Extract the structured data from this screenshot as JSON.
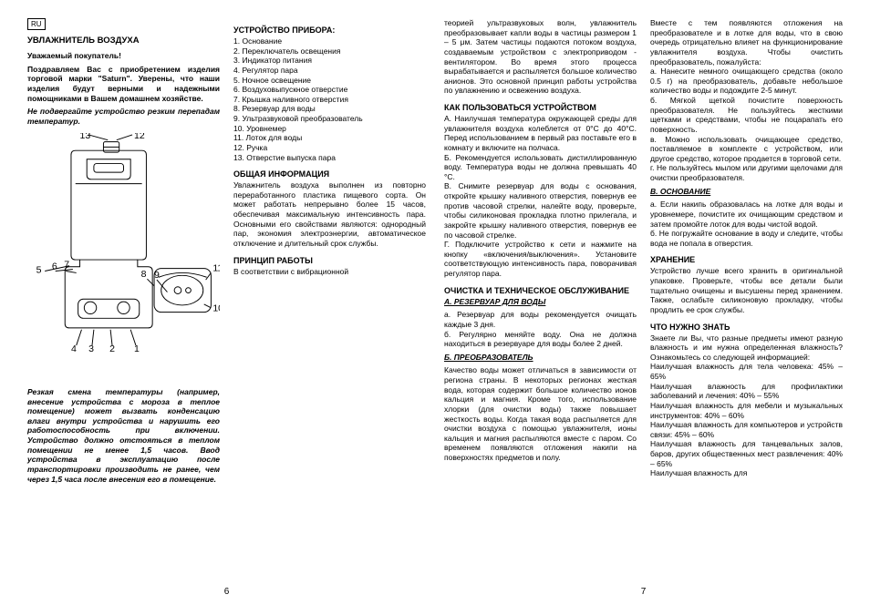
{
  "lang_label": "RU",
  "page_left_num": "6",
  "page_right_num": "7",
  "title": "УВЛАЖНИТЕЛЬ ВОЗДУХА",
  "greeting_heading": "Уважаемый покупатель!",
  "greeting_body": "Поздравляем Вас с приобретением изделия торговой марки \"Saturn\". Уверены, что наши изделия будут верными и надежными помощниками в Вашем домашнем хозяйстве.",
  "warning1": "Не подвергайте устройство резким перепадам температур.",
  "warning2": "Резкая смена температуры (например, внесение устройства с мороза в теплое помещение) может вызвать конденсацию влаги внутри устройства и нарушить его работоспособность при включении. Устройство должно отстояться в теплом помещении не менее 1,5 часов. Ввод устройства в эксплуатацию после транспортировки произво­дить не ранее, чем через 1,5 часа после внесения его в помещение.",
  "device_heading": "УСТРОЙСТВО ПРИБОРА:",
  "device_parts": [
    "Основание",
    "Переключатель освещения",
    "Индикатор питания",
    "Регулятор пара",
    "Ночное освещение",
    "Воздуховыпускное отверстие",
    "Крышка наливного отверстия",
    "Резервуар для воды",
    "Ультразвуковой преобразователь",
    "Уровнемер",
    "Лоток для воды",
    "Ручка",
    "Отверстие выпуска пара"
  ],
  "general_heading": "ОБЩАЯ ИНФОРМАЦИЯ",
  "general_body": "Увлажнитель воздуха выполнен из повторно переработанного пластика пищевого сорта. Он может работать непрерывно более 15 часов, обеспечивая максимальную интенсивность пара. Основными его свойствами являются: однородный пар, экономия электроэнергии, автоматическое отключение и длительный срок службы.",
  "principle_heading": "ПРИНЦИП РАБОТЫ",
  "principle_body1": "В соответствии с вибрационной",
  "principle_body2": "теорией ультразвуковых волн, увлажнитель преобразовывает капли воды в частицы размером 1 – 5 μм. Затем частицы подаются потоком воздуха, создаваемым устройством с электроприводом - вентилятором. Во время этого процесса вырабатывается и распыляется большое количество анионов. Это основной принцип работы устройства по увлажнению и освежению воздуха.",
  "usage_heading": "КАК ПОЛЬЗОВАТЬСЯ УСТРОЙСТВОМ",
  "usage_body": "А. Наилучшая температура окружающей среды для увлажнителя воздуха колеблется от 0°С до 40°С. Перед использованием в первый раз поставьте его в комнату и включите на полчаса.\nБ. Рекомендуется использовать дистиллированную воду. Температура воды не должна превышать 40 °С.\nВ. Снимите резервуар для воды с основания, откройте крышку наливного отверстия, повернув ее против часовой стрелки, налейте воду, проверьте, чтобы силиконовая прокладка плотно прилегала, и закройте крышку наливного отверстия, повернув ее по часовой стрелке.\nГ. Подключите устройство к сети и нажмите на кнопку «включения/выключения». Установите соответствующую интенсивность пара, поворачивая регулятор пара.",
  "maint_heading": "ОЧИСТКА И ТЕХНИЧЕСКОЕ ОБСЛУЖИВАНИЕ",
  "maint_a_heading": "А. РЕЗЕРВУАР ДЛЯ ВОДЫ",
  "maint_a_body": "а. Резервуар для воды рекомендуется очищать каждые 3 дня.\nб. Регулярно меняйте воду. Она не должна находиться в резервуаре для воды более 2 дней.",
  "maint_b_heading": "Б. ПРЕОБРАЗОВАТЕЛЬ",
  "maint_b_body1": "Качество воды может отличаться в зависимости от региона страны. В некоторых регионах жесткая вода, которая содержит большое количество ионов кальция и магния. Кроме того, использование хлорки (для очистки воды) также повышает жесткость воды. Когда такая вода распыляется для очистки воздуха с помощью увлажнителя, ионы кальция и магния распыляются вместе с паром. Со временем появляются отложения накипи на поверхностях предметов и полу.",
  "maint_b_body2": "Вместе с тем появляются отложения на преобразователе и в лотке для воды, что в свою очередь отрицательно влияет на функционирование увлажнителя воздуха. Чтобы очистить преобразователь, пожалуйста:\nа. Нанесите немного очищающего средства (около 0.5 г) на преобразователь, добавьте небольшое количество воды и подождите 2-5 минут.\nб. Мягкой щеткой почистите поверхность преобразователя. Не пользуйтесь жесткими щетками и средствами, чтобы не поцарапать его поверхность.\nв. Можно использовать очищающее средство, поставляемое в комплекте с устройством, или другое средство, которое продается в торговой сети.\nг. Не пользуйтесь мылом или другими щелочами для очистки преобразователя.",
  "maint_c_heading": "В. ОСНОВАНИЕ",
  "maint_c_body": "а. Если накипь образовалась на лотке для воды и уровнемере, почистите их очищающим средством и затем промойте лоток для воды чистой водой.\nб. Не погружайте основание в воду и следите, чтобы вода не попала в отверстия.",
  "storage_heading": "ХРАНЕНИЕ",
  "storage_body": "Устройство лучше всего хранить в оригинальной упаковке. Проверьте, чтобы все детали были тщательно очищены и высушены перед хранением. Также, ослабьте силиконовую прокладку, чтобы продлить ее срок службы.",
  "know_heading": "ЧТО НУЖНО ЗНАТЬ",
  "know_body": "Знаете ли Вы, что разные предметы имеют разную влажность и им нужна определенная влажность? Ознакомьтесь со следующей информацией:\nНаилучшая влажность для тела человека: 45% – 65%\nНаилучшая влажность для профилактики заболеваний и лечения: 40% – 55%\nНаилучшая влажность для мебели и музыкальных инструментов: 40% – 60%\nНаилучшая влажность для компьютеров и устройств связи: 45% – 60%\nНаилучшая влажность для танцевальных залов, баров, других общественных мест развлечения: 40% – 65%\nНаилучшая влажность для",
  "figure": {
    "labels": [
      "1",
      "2",
      "3",
      "4",
      "5",
      "6",
      "7",
      "8",
      "9",
      "10",
      "11",
      "12",
      "13"
    ],
    "stroke": "#000000",
    "fill": "#ffffff"
  }
}
